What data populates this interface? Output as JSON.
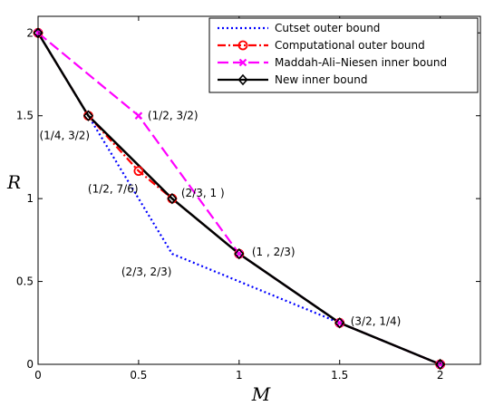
{
  "chart_data": {
    "type": "line",
    "xlabel": "M",
    "ylabel": "R",
    "xlim": [
      0,
      2.2
    ],
    "ylim": [
      0,
      2.1
    ],
    "x_ticks": [
      0,
      0.5,
      1,
      1.5,
      2
    ],
    "x_tick_labels": [
      "0",
      "0.5",
      "1",
      "1.5",
      "2"
    ],
    "y_ticks": [
      0,
      0.5,
      1,
      1.5,
      2
    ],
    "y_tick_labels": [
      "0",
      "0.5",
      "1",
      "1.5",
      "2"
    ],
    "grid": false,
    "legend_position": "top-right",
    "series": [
      {
        "name": "Cutset outer bound",
        "color": "#0000ff",
        "style": "dotted",
        "marker": "none",
        "x": [
          0,
          0.25,
          0.5,
          0.6667,
          1,
          1.5,
          2
        ],
        "y": [
          2,
          1.5,
          1,
          0.6667,
          0.5,
          0.25,
          0
        ]
      },
      {
        "name": "Computational outer bound",
        "color": "#ff0000",
        "style": "dashdot",
        "marker": "circle",
        "x": [
          0,
          0.25,
          0.5,
          0.6667,
          1,
          1.5,
          2
        ],
        "y": [
          2,
          1.5,
          1.1667,
          1,
          0.6667,
          0.25,
          0
        ]
      },
      {
        "name": "Maddah-Ali–Niesen inner bound",
        "color": "#ff00ff",
        "style": "dashed",
        "marker": "x",
        "x": [
          0,
          0.5,
          1,
          1.5,
          2
        ],
        "y": [
          2,
          1.5,
          0.6667,
          0.25,
          0
        ]
      },
      {
        "name": "New inner bound",
        "color": "#000000",
        "style": "solid",
        "marker": "diamond",
        "x": [
          0,
          0.25,
          0.6667,
          1,
          1.5,
          2
        ],
        "y": [
          2,
          1.5,
          1,
          0.6667,
          0.25,
          0
        ]
      }
    ],
    "annotations": [
      {
        "text": "(1/2, 3/2)",
        "x": 0.5,
        "y": 1.5,
        "dx": 10,
        "dy": 0
      },
      {
        "text": "(1/4, 3/2)",
        "x": 0.25,
        "y": 1.5,
        "dx": -54,
        "dy": 22
      },
      {
        "text": "(1/2, 7/6)",
        "x": 0.5,
        "y": 1.1667,
        "dx": -56,
        "dy": 20
      },
      {
        "text": "(2/3, 1  )",
        "x": 0.6667,
        "y": 1,
        "dx": 10,
        "dy": -6
      },
      {
        "text": "(2/3, 2/3)",
        "x": 0.6667,
        "y": 0.6667,
        "dx": -56,
        "dy": 20
      },
      {
        "text": "(1  , 2/3)",
        "x": 1,
        "y": 0.6667,
        "dx": 14,
        "dy": -2
      },
      {
        "text": "(3/2, 1/4)",
        "x": 1.5,
        "y": 0.25,
        "dx": 12,
        "dy": -2
      }
    ]
  }
}
